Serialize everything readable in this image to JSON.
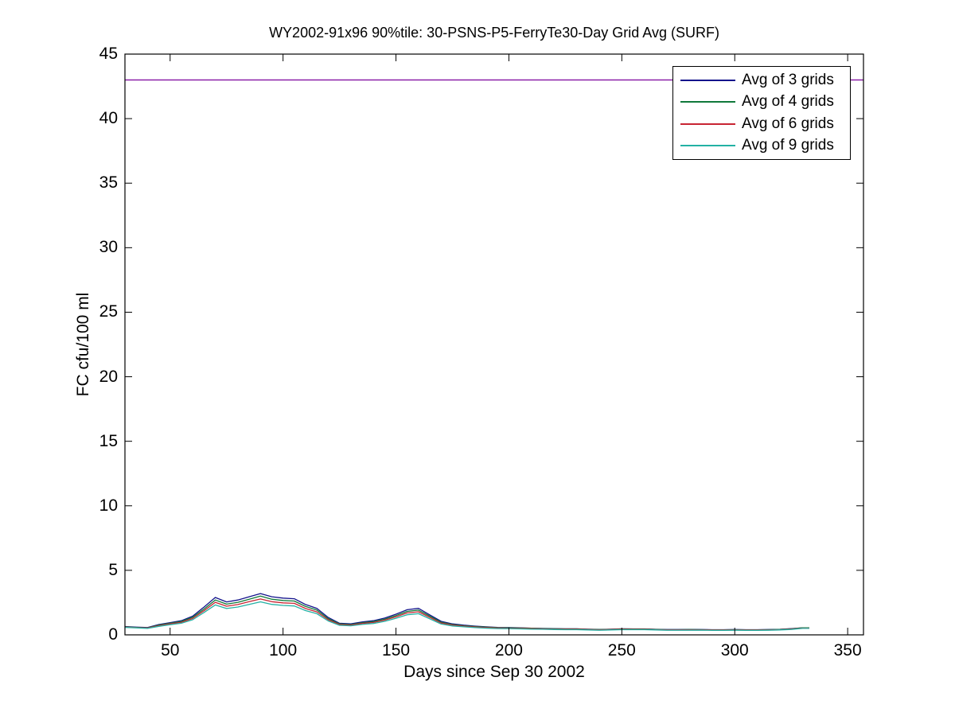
{
  "chart_data": {
    "type": "line",
    "title": "WY2002-91x96 90%tile: 30-PSNS-P5-FerryTe30-Day Grid Avg (SURF)",
    "xlabel": "Days since Sep 30 2002",
    "ylabel": "FC cfu/100 ml",
    "xlim": [
      30,
      357
    ],
    "ylim": [
      0,
      45
    ],
    "xticks": [
      50,
      100,
      150,
      200,
      250,
      300,
      350
    ],
    "yticks": [
      0,
      5,
      10,
      15,
      20,
      25,
      30,
      35,
      40,
      45
    ],
    "grid": false,
    "legend_position": "northeast",
    "axis_color": "#000000",
    "x": [
      30,
      35,
      40,
      45,
      50,
      55,
      60,
      65,
      70,
      75,
      80,
      85,
      90,
      95,
      100,
      105,
      110,
      115,
      120,
      125,
      130,
      135,
      140,
      145,
      150,
      155,
      160,
      165,
      170,
      175,
      180,
      185,
      190,
      195,
      200,
      205,
      210,
      215,
      220,
      225,
      230,
      235,
      240,
      245,
      250,
      255,
      260,
      265,
      270,
      275,
      280,
      285,
      290,
      295,
      300,
      305,
      310,
      315,
      320,
      325,
      330,
      333
    ],
    "series": [
      {
        "name": "Avg of 3 grids",
        "color": "#14148C",
        "values": [
          0.65,
          0.6,
          0.57,
          0.8,
          0.95,
          1.1,
          1.45,
          2.15,
          2.9,
          2.55,
          2.7,
          2.95,
          3.2,
          2.95,
          2.85,
          2.8,
          2.35,
          2.05,
          1.35,
          0.9,
          0.85,
          1.0,
          1.1,
          1.3,
          1.6,
          1.95,
          2.05,
          1.55,
          1.05,
          0.85,
          0.75,
          0.68,
          0.62,
          0.58,
          0.57,
          0.55,
          0.52,
          0.5,
          0.48,
          0.47,
          0.47,
          0.44,
          0.42,
          0.44,
          0.47,
          0.46,
          0.46,
          0.43,
          0.41,
          0.41,
          0.42,
          0.41,
          0.4,
          0.4,
          0.41,
          0.4,
          0.4,
          0.41,
          0.43,
          0.48,
          0.55,
          0.55
        ]
      },
      {
        "name": "Avg of 4 grids",
        "color": "#10783A",
        "values": [
          0.62,
          0.58,
          0.55,
          0.76,
          0.9,
          1.04,
          1.36,
          2.0,
          2.7,
          2.38,
          2.52,
          2.76,
          3.0,
          2.76,
          2.66,
          2.62,
          2.2,
          1.92,
          1.26,
          0.85,
          0.8,
          0.94,
          1.03,
          1.22,
          1.5,
          1.82,
          1.92,
          1.45,
          0.98,
          0.8,
          0.71,
          0.65,
          0.6,
          0.56,
          0.55,
          0.53,
          0.51,
          0.49,
          0.47,
          0.46,
          0.46,
          0.43,
          0.41,
          0.43,
          0.46,
          0.45,
          0.45,
          0.42,
          0.4,
          0.4,
          0.41,
          0.4,
          0.39,
          0.39,
          0.4,
          0.39,
          0.39,
          0.4,
          0.42,
          0.47,
          0.54,
          0.54
        ]
      },
      {
        "name": "Avg of 6 grids",
        "color": "#C82433",
        "values": [
          0.6,
          0.56,
          0.53,
          0.71,
          0.85,
          0.97,
          1.27,
          1.87,
          2.52,
          2.22,
          2.35,
          2.57,
          2.78,
          2.57,
          2.48,
          2.44,
          2.04,
          1.78,
          1.17,
          0.8,
          0.75,
          0.88,
          0.96,
          1.14,
          1.4,
          1.7,
          1.79,
          1.35,
          0.91,
          0.75,
          0.67,
          0.61,
          0.56,
          0.53,
          0.52,
          0.5,
          0.48,
          0.46,
          0.44,
          0.44,
          0.44,
          0.41,
          0.39,
          0.41,
          0.44,
          0.43,
          0.43,
          0.4,
          0.39,
          0.39,
          0.39,
          0.38,
          0.38,
          0.38,
          0.38,
          0.38,
          0.38,
          0.38,
          0.4,
          0.45,
          0.52,
          0.52
        ]
      },
      {
        "name": "Avg of 9 grids",
        "color": "#23B1A4",
        "values": [
          0.58,
          0.54,
          0.5,
          0.66,
          0.79,
          0.9,
          1.17,
          1.73,
          2.32,
          2.04,
          2.16,
          2.36,
          2.56,
          2.36,
          2.28,
          2.24,
          1.88,
          1.64,
          1.08,
          0.74,
          0.7,
          0.81,
          0.88,
          1.05,
          1.29,
          1.56,
          1.64,
          1.24,
          0.84,
          0.69,
          0.62,
          0.56,
          0.52,
          0.49,
          0.48,
          0.46,
          0.44,
          0.43,
          0.41,
          0.4,
          0.4,
          0.38,
          0.36,
          0.38,
          0.4,
          0.4,
          0.4,
          0.38,
          0.36,
          0.36,
          0.36,
          0.36,
          0.35,
          0.35,
          0.36,
          0.35,
          0.35,
          0.36,
          0.38,
          0.42,
          0.5,
          0.5
        ]
      }
    ],
    "reference_line": {
      "y": 43,
      "color": "#8B20A8"
    }
  },
  "legend": {
    "items": [
      {
        "label": "Avg of 3 grids",
        "color": "#14148C"
      },
      {
        "label": "Avg of 4 grids",
        "color": "#10783A"
      },
      {
        "label": "Avg of 6 grids",
        "color": "#C82433"
      },
      {
        "label": "Avg of 9 grids",
        "color": "#23B1A4"
      }
    ]
  }
}
